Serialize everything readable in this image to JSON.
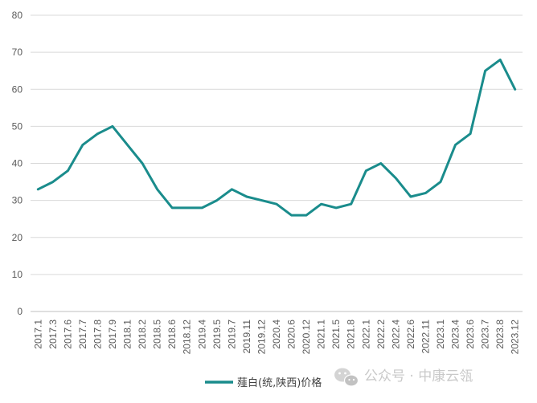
{
  "chart_data": {
    "type": "line",
    "title": "",
    "xlabel": "",
    "ylabel": "",
    "ylim": [
      0,
      80
    ],
    "yticks": [
      0,
      10,
      20,
      30,
      40,
      50,
      60,
      70,
      80
    ],
    "grid": "horizontal",
    "legend_position": "bottom",
    "categories": [
      "2017.1",
      "2017.3",
      "2017.6",
      "2017.7",
      "2017.8",
      "2017.9",
      "2018.1",
      "2018.2",
      "2018.5",
      "2018.6",
      "2018.12",
      "2019.4",
      "2019.5",
      "2019.7",
      "2019.11",
      "2019.12",
      "2020.4",
      "2020.6",
      "2020.12",
      "2021.1",
      "2021.5",
      "2021.8",
      "2022.1",
      "2022.2",
      "2022.4",
      "2022.6",
      "2022.11",
      "2023.1",
      "2023.4",
      "2023.6",
      "2023.7",
      "2023.8",
      "2023.12"
    ],
    "series": [
      {
        "name": "薤白(统,陕西)价格",
        "color": "#1a8c8c",
        "values": [
          33,
          35,
          38,
          45,
          48,
          50,
          45,
          40,
          33,
          28,
          28,
          28,
          30,
          33,
          31,
          30,
          29,
          26,
          26,
          29,
          28,
          29,
          38,
          40,
          36,
          31,
          32,
          35,
          45,
          48,
          65,
          68,
          60
        ]
      }
    ]
  },
  "watermark": {
    "icon": "wechat-icon",
    "text": "公众号 · 中康云瓴"
  }
}
